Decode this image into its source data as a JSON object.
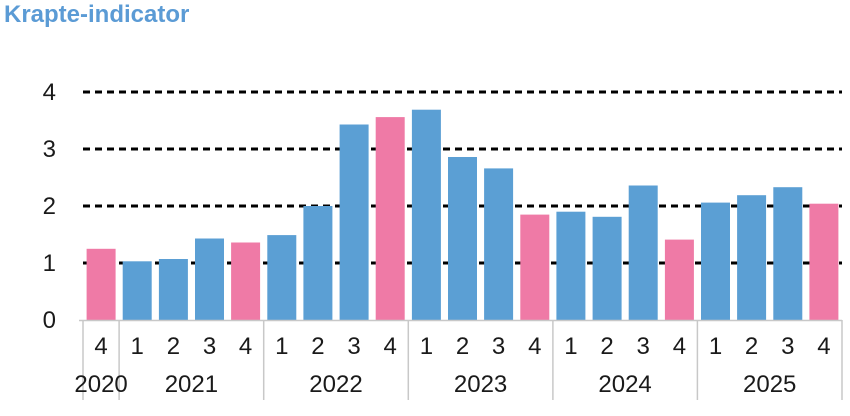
{
  "colors": {
    "title": "#5b9bd5",
    "regular": "#5b9fd4",
    "highlight": "#ef7aa6",
    "gridline": "#000000",
    "axis": "#c8c8c8"
  },
  "chart_data": {
    "type": "bar",
    "title": "Krapte-indicator",
    "ylim": [
      0,
      4
    ],
    "yticks": [
      0,
      1,
      2,
      3,
      4
    ],
    "grid": true,
    "grid_style": "dashed",
    "categories": [
      "2020 Q4",
      "2021 Q1",
      "2021 Q2",
      "2021 Q3",
      "2021 Q4",
      "2022 Q1",
      "2022 Q2",
      "2022 Q3",
      "2022 Q4",
      "2023 Q1",
      "2023 Q2",
      "2023 Q3",
      "2023 Q4",
      "2024 Q1",
      "2024 Q2",
      "2024 Q3",
      "2024 Q4",
      "2025 Q1",
      "2025 Q2",
      "2025 Q3",
      "2025 Q4"
    ],
    "quarter_labels": [
      "4",
      "1",
      "2",
      "3",
      "4",
      "1",
      "2",
      "3",
      "4",
      "1",
      "2",
      "3",
      "4",
      "1",
      "2",
      "3",
      "4",
      "1",
      "2",
      "3",
      "4"
    ],
    "year_groups": [
      {
        "label": "2020",
        "count": 1
      },
      {
        "label": "2021",
        "count": 4
      },
      {
        "label": "2022",
        "count": 4
      },
      {
        "label": "2023",
        "count": 4
      },
      {
        "label": "2024",
        "count": 4
      },
      {
        "label": "2025",
        "count": 4
      }
    ],
    "values": [
      1.25,
      1.03,
      1.07,
      1.43,
      1.36,
      1.49,
      2.0,
      3.43,
      3.56,
      3.69,
      2.86,
      2.66,
      1.85,
      1.9,
      1.81,
      2.36,
      1.41,
      2.06,
      2.19,
      2.33,
      2.04
    ],
    "highlighted": [
      true,
      false,
      false,
      false,
      true,
      false,
      false,
      false,
      true,
      false,
      false,
      false,
      true,
      false,
      false,
      false,
      true,
      false,
      false,
      false,
      true
    ]
  }
}
